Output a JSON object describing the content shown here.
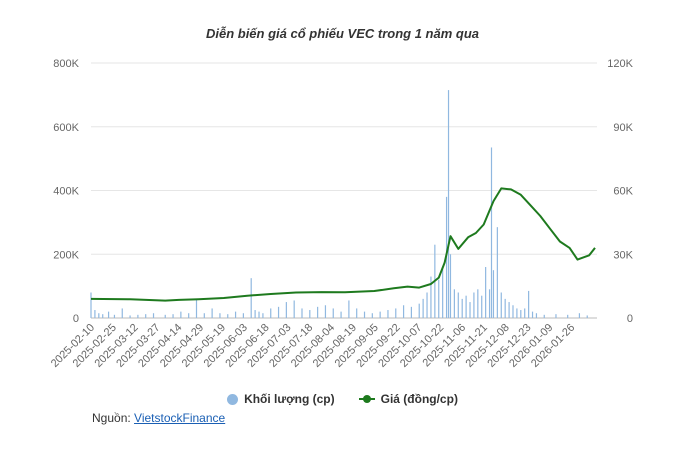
{
  "chart_data": {
    "type": "bar+line",
    "title": "Diễn biến giá cổ phiếu VEC trong 1 năm qua",
    "x_tick_labels": [
      "2025-02-10",
      "2025-02-25",
      "2025-03-12",
      "2025-03-27",
      "2025-04-14",
      "2025-04-29",
      "2025-05-19",
      "2025-06-03",
      "2025-06-18",
      "2025-07-03",
      "2025-07-18",
      "2025-08-04",
      "2025-08-19",
      "2025-09-05",
      "2025-09-22",
      "2025-10-07",
      "2025-10-22",
      "2025-11-06",
      "2025-11-21",
      "2025-12-08",
      "2025-12-23",
      "2026-01-09",
      "2026-01-26"
    ],
    "y_left": {
      "ticks": [
        "0",
        "200K",
        "400K",
        "600K",
        "800K"
      ],
      "range": [
        0,
        800000
      ]
    },
    "y_right": {
      "ticks": [
        "0",
        "30K",
        "60K",
        "90K",
        "120K"
      ],
      "range": [
        0,
        120000
      ]
    },
    "grid": true,
    "legend_position": "bottom",
    "series": [
      {
        "name": "Khối lượng (cp)",
        "type": "bar",
        "axis": "left",
        "color": "#90b8e0",
        "points": [
          {
            "i": 0,
            "v": 80000
          },
          {
            "i": 2,
            "v": 25000
          },
          {
            "i": 4,
            "v": 15000
          },
          {
            "i": 6,
            "v": 12000
          },
          {
            "i": 9,
            "v": 20000
          },
          {
            "i": 12,
            "v": 10000
          },
          {
            "i": 16,
            "v": 30000
          },
          {
            "i": 20,
            "v": 8000
          },
          {
            "i": 24,
            "v": 10000
          },
          {
            "i": 28,
            "v": 12000
          },
          {
            "i": 32,
            "v": 15000
          },
          {
            "i": 38,
            "v": 10000
          },
          {
            "i": 42,
            "v": 12000
          },
          {
            "i": 46,
            "v": 20000
          },
          {
            "i": 50,
            "v": 15000
          },
          {
            "i": 54,
            "v": 60000
          },
          {
            "i": 58,
            "v": 15000
          },
          {
            "i": 62,
            "v": 30000
          },
          {
            "i": 66,
            "v": 15000
          },
          {
            "i": 70,
            "v": 12000
          },
          {
            "i": 74,
            "v": 20000
          },
          {
            "i": 78,
            "v": 15000
          },
          {
            "i": 82,
            "v": 125000
          },
          {
            "i": 84,
            "v": 25000
          },
          {
            "i": 86,
            "v": 20000
          },
          {
            "i": 88,
            "v": 15000
          },
          {
            "i": 92,
            "v": 30000
          },
          {
            "i": 96,
            "v": 35000
          },
          {
            "i": 100,
            "v": 50000
          },
          {
            "i": 104,
            "v": 55000
          },
          {
            "i": 108,
            "v": 30000
          },
          {
            "i": 112,
            "v": 25000
          },
          {
            "i": 116,
            "v": 35000
          },
          {
            "i": 120,
            "v": 40000
          },
          {
            "i": 124,
            "v": 30000
          },
          {
            "i": 128,
            "v": 20000
          },
          {
            "i": 132,
            "v": 55000
          },
          {
            "i": 136,
            "v": 30000
          },
          {
            "i": 140,
            "v": 20000
          },
          {
            "i": 144,
            "v": 15000
          },
          {
            "i": 148,
            "v": 20000
          },
          {
            "i": 152,
            "v": 25000
          },
          {
            "i": 156,
            "v": 30000
          },
          {
            "i": 160,
            "v": 40000
          },
          {
            "i": 164,
            "v": 35000
          },
          {
            "i": 168,
            "v": 45000
          },
          {
            "i": 170,
            "v": 60000
          },
          {
            "i": 172,
            "v": 80000
          },
          {
            "i": 174,
            "v": 130000
          },
          {
            "i": 176,
            "v": 230000
          },
          {
            "i": 178,
            "v": 120000
          },
          {
            "i": 180,
            "v": 160000
          },
          {
            "i": 182,
            "v": 380000
          },
          {
            "i": 183,
            "v": 715000
          },
          {
            "i": 184,
            "v": 200000
          },
          {
            "i": 186,
            "v": 90000
          },
          {
            "i": 188,
            "v": 80000
          },
          {
            "i": 190,
            "v": 60000
          },
          {
            "i": 192,
            "v": 70000
          },
          {
            "i": 194,
            "v": 50000
          },
          {
            "i": 196,
            "v": 80000
          },
          {
            "i": 198,
            "v": 90000
          },
          {
            "i": 200,
            "v": 70000
          },
          {
            "i": 202,
            "v": 160000
          },
          {
            "i": 204,
            "v": 90000
          },
          {
            "i": 205,
            "v": 535000
          },
          {
            "i": 206,
            "v": 150000
          },
          {
            "i": 208,
            "v": 285000
          },
          {
            "i": 210,
            "v": 80000
          },
          {
            "i": 212,
            "v": 60000
          },
          {
            "i": 214,
            "v": 50000
          },
          {
            "i": 216,
            "v": 40000
          },
          {
            "i": 218,
            "v": 30000
          },
          {
            "i": 220,
            "v": 25000
          },
          {
            "i": 222,
            "v": 30000
          },
          {
            "i": 224,
            "v": 85000
          },
          {
            "i": 226,
            "v": 20000
          },
          {
            "i": 228,
            "v": 15000
          },
          {
            "i": 232,
            "v": 10000
          },
          {
            "i": 238,
            "v": 12000
          },
          {
            "i": 244,
            "v": 10000
          },
          {
            "i": 250,
            "v": 15000
          },
          {
            "i": 254,
            "v": 8000
          }
        ]
      },
      {
        "name": "Giá (đồng/cp)",
        "type": "line",
        "axis": "right",
        "color": "#1e7a1e",
        "points": [
          {
            "i": 0,
            "v": 9000
          },
          {
            "i": 20,
            "v": 8800
          },
          {
            "i": 38,
            "v": 8200
          },
          {
            "i": 45,
            "v": 8500
          },
          {
            "i": 55,
            "v": 8800
          },
          {
            "i": 68,
            "v": 9400
          },
          {
            "i": 80,
            "v": 10500
          },
          {
            "i": 92,
            "v": 11300
          },
          {
            "i": 105,
            "v": 12000
          },
          {
            "i": 118,
            "v": 12200
          },
          {
            "i": 130,
            "v": 12100
          },
          {
            "i": 145,
            "v": 12700
          },
          {
            "i": 155,
            "v": 14000
          },
          {
            "i": 162,
            "v": 14800
          },
          {
            "i": 168,
            "v": 14300
          },
          {
            "i": 174,
            "v": 16000
          },
          {
            "i": 178,
            "v": 19000
          },
          {
            "i": 181,
            "v": 26000
          },
          {
            "i": 184,
            "v": 38500
          },
          {
            "i": 188,
            "v": 32500
          },
          {
            "i": 193,
            "v": 38000
          },
          {
            "i": 197,
            "v": 40000
          },
          {
            "i": 201,
            "v": 44000
          },
          {
            "i": 206,
            "v": 55000
          },
          {
            "i": 210,
            "v": 61000
          },
          {
            "i": 215,
            "v": 60500
          },
          {
            "i": 220,
            "v": 58000
          },
          {
            "i": 225,
            "v": 53000
          },
          {
            "i": 230,
            "v": 48000
          },
          {
            "i": 235,
            "v": 42000
          },
          {
            "i": 240,
            "v": 36000
          },
          {
            "i": 245,
            "v": 33000
          },
          {
            "i": 249,
            "v": 27500
          },
          {
            "i": 252,
            "v": 28500
          },
          {
            "i": 255,
            "v": 29500
          },
          {
            "i": 258,
            "v": 33000
          }
        ]
      }
    ]
  },
  "legend": {
    "volume_label": "Khối lượng (cp)",
    "price_label": "Giá (đồng/cp)"
  },
  "source": {
    "prefix": "Nguồn: ",
    "link_text": "VietstockFinance"
  }
}
